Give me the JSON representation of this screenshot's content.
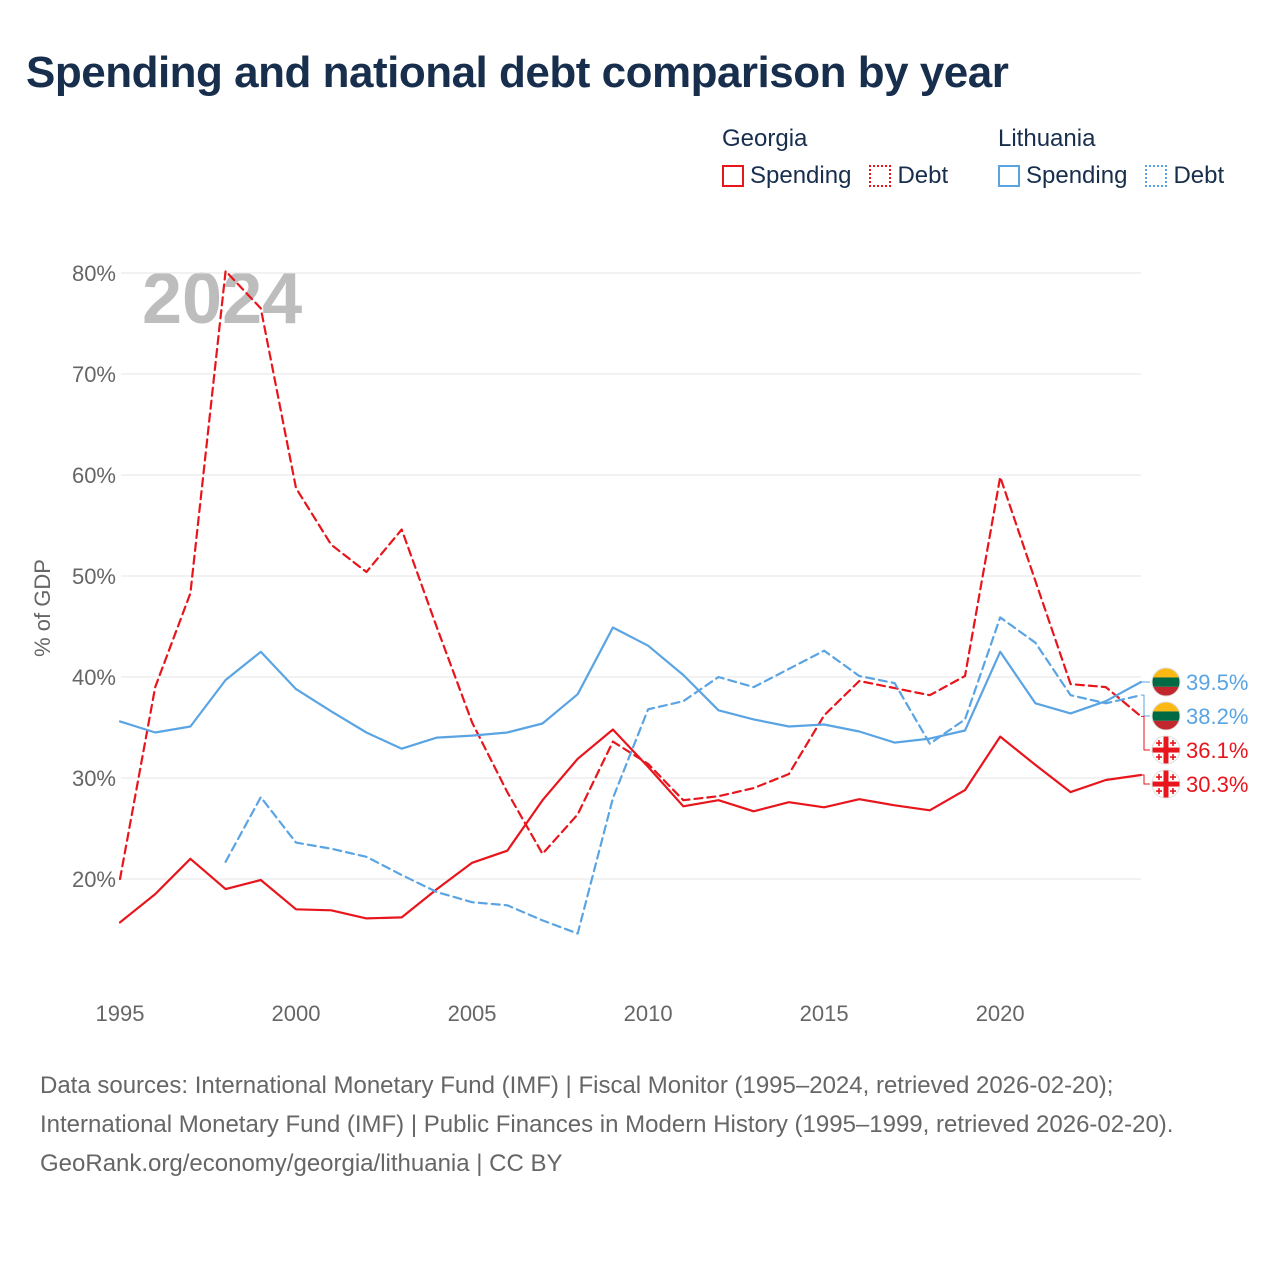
{
  "title": "Spending and national debt comparison by year",
  "legend": {
    "groups": [
      {
        "country": "Georgia",
        "color": "#e8151c",
        "spending_label": "Spending",
        "debt_label": "Debt"
      },
      {
        "country": "Lithuania",
        "color": "#5aa4e3",
        "spending_label": "Spending",
        "debt_label": "Debt"
      }
    ]
  },
  "chart_data": {
    "type": "line",
    "year_watermark": "2024",
    "ylabel": "% of GDP",
    "xlim": [
      1995,
      2024
    ],
    "ylim": [
      10,
      80
    ],
    "y_ticks": [
      20,
      30,
      40,
      50,
      60,
      70,
      80
    ],
    "y_tick_labels": [
      "20%",
      "30%",
      "40%",
      "50%",
      "60%",
      "70%",
      "80%"
    ],
    "x_ticks": [
      1995,
      2000,
      2005,
      2010,
      2015,
      2020
    ],
    "x_tick_labels": [
      "1995",
      "2000",
      "2005",
      "2010",
      "2015",
      "2020"
    ],
    "grid": "horizontal",
    "series": [
      {
        "name": "Georgia Spending",
        "color": "#e8151c",
        "style": "solid",
        "x": [
          1995,
          1996,
          1997,
          1998,
          1999,
          2000,
          2001,
          2002,
          2003,
          2004,
          2005,
          2006,
          2007,
          2008,
          2009,
          2010,
          2011,
          2012,
          2013,
          2014,
          2015,
          2016,
          2017,
          2018,
          2019,
          2020,
          2021,
          2022,
          2023,
          2024
        ],
        "y": [
          15.7,
          18.5,
          22.0,
          19.0,
          19.9,
          17.0,
          16.9,
          16.1,
          16.2,
          19.0,
          21.6,
          22.8,
          27.8,
          31.9,
          34.8,
          31.1,
          27.2,
          27.8,
          26.7,
          27.6,
          27.1,
          27.9,
          27.3,
          26.8,
          28.8,
          34.1,
          31.3,
          28.6,
          29.8,
          30.3
        ],
        "end_label": "30.3%"
      },
      {
        "name": "Georgia Debt",
        "color": "#e8151c",
        "style": "dashed",
        "x": [
          1995,
          1996,
          1997,
          1998,
          1999,
          2000,
          2001,
          2002,
          2003,
          2004,
          2005,
          2006,
          2007,
          2008,
          2009,
          2010,
          2011,
          2012,
          2013,
          2014,
          2015,
          2016,
          2017,
          2018,
          2019,
          2020,
          2021,
          2022,
          2023,
          2024
        ],
        "y": [
          20.0,
          39.0,
          48.3,
          80.2,
          76.5,
          58.7,
          53.1,
          50.4,
          54.6,
          44.9,
          35.5,
          28.6,
          22.5,
          26.4,
          33.6,
          31.4,
          27.8,
          28.2,
          29.0,
          30.4,
          36.2,
          39.6,
          38.9,
          38.2,
          40.1,
          59.8,
          49.5,
          39.3,
          39.0,
          36.1
        ],
        "end_label": "36.1%"
      },
      {
        "name": "Lithuania Spending",
        "color": "#5aa4e3",
        "style": "solid",
        "x": [
          1995,
          1996,
          1997,
          1998,
          1999,
          2000,
          2001,
          2002,
          2003,
          2004,
          2005,
          2006,
          2007,
          2008,
          2009,
          2010,
          2011,
          2012,
          2013,
          2014,
          2015,
          2016,
          2017,
          2018,
          2019,
          2020,
          2021,
          2022,
          2023,
          2024
        ],
        "y": [
          35.6,
          34.5,
          35.1,
          39.7,
          42.5,
          38.8,
          36.6,
          34.5,
          32.9,
          34.0,
          34.2,
          34.5,
          35.4,
          38.3,
          44.9,
          43.1,
          40.2,
          36.7,
          35.8,
          35.1,
          35.3,
          34.6,
          33.5,
          33.9,
          34.7,
          42.5,
          37.4,
          36.4,
          37.6,
          39.5
        ],
        "end_label": "39.5%"
      },
      {
        "name": "Lithuania Debt",
        "color": "#5aa4e3",
        "style": "dashed",
        "x": [
          1998,
          1999,
          2000,
          2001,
          2002,
          2003,
          2004,
          2005,
          2006,
          2007,
          2008,
          2009,
          2010,
          2011,
          2012,
          2013,
          2014,
          2015,
          2016,
          2017,
          2018,
          2019,
          2020,
          2021,
          2022,
          2023,
          2024
        ],
        "y": [
          21.7,
          28.1,
          23.6,
          23.0,
          22.2,
          20.4,
          18.7,
          17.7,
          17.4,
          15.9,
          14.6,
          28.0,
          36.8,
          37.6,
          40.0,
          39.0,
          40.8,
          42.6,
          40.1,
          39.4,
          33.4,
          35.8,
          45.9,
          43.4,
          38.2,
          37.4,
          38.2
        ],
        "end_label": "38.2%"
      }
    ]
  },
  "footer": {
    "sources": "Data sources: International Monetary Fund (IMF) | Fiscal Monitor (1995–2024, retrieved 2026-02-20); International Monetary Fund (IMF) | Public Finances in Modern History (1995–1999, retrieved 2026-02-20).",
    "credit": "GeoRank.org/economy/georgia/lithuania | CC BY"
  }
}
